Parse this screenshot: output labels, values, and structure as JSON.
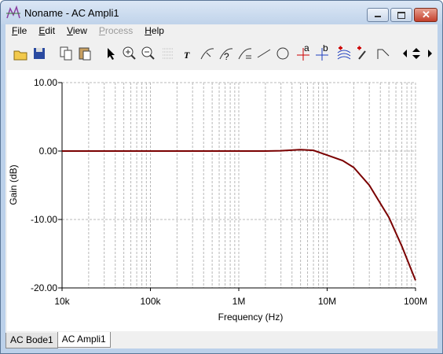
{
  "window": {
    "title": "Noname - AC Ampli1"
  },
  "menu": [
    {
      "label": "File",
      "enabled": true
    },
    {
      "label": "Edit",
      "enabled": true
    },
    {
      "label": "View",
      "enabled": true
    },
    {
      "label": "Process",
      "enabled": false
    },
    {
      "label": "Help",
      "enabled": true
    }
  ],
  "tabs": [
    {
      "label": "AC Bode1",
      "active": false
    },
    {
      "label": "AC Ampli1",
      "active": true
    }
  ],
  "chart_data": {
    "type": "line",
    "xscale": "log",
    "grid": true,
    "xlabel": "Frequency (Hz)",
    "ylabel": "Gain (dB)",
    "x": [
      10000,
      100000,
      1000000,
      2000000,
      3000000,
      5000000,
      7000000,
      10000000,
      15000000,
      20000000,
      30000000,
      50000000,
      70000000,
      100000000
    ],
    "series": [
      {
        "color": "#7a0000",
        "values": [
          0,
          0,
          0,
          0,
          0.05,
          0.2,
          0.1,
          -0.6,
          -1.4,
          -2.4,
          -5,
          -9.7,
          -13.9,
          -18.9
        ]
      }
    ],
    "xlim": [
      10000,
      100000000
    ],
    "xticks": [
      {
        "value": 10000,
        "label": "10k"
      },
      {
        "value": 100000,
        "label": "100k"
      },
      {
        "value": 1000000,
        "label": "1M"
      },
      {
        "value": 10000000,
        "label": "10M"
      },
      {
        "value": 100000000,
        "label": "100M"
      }
    ],
    "ylim": [
      -20,
      10
    ],
    "yticks": [
      {
        "value": -20,
        "label": "-20.00"
      },
      {
        "value": -10,
        "label": "-10.00"
      },
      {
        "value": 0,
        "label": "0.00"
      },
      {
        "value": 10,
        "label": "10.00"
      }
    ]
  }
}
